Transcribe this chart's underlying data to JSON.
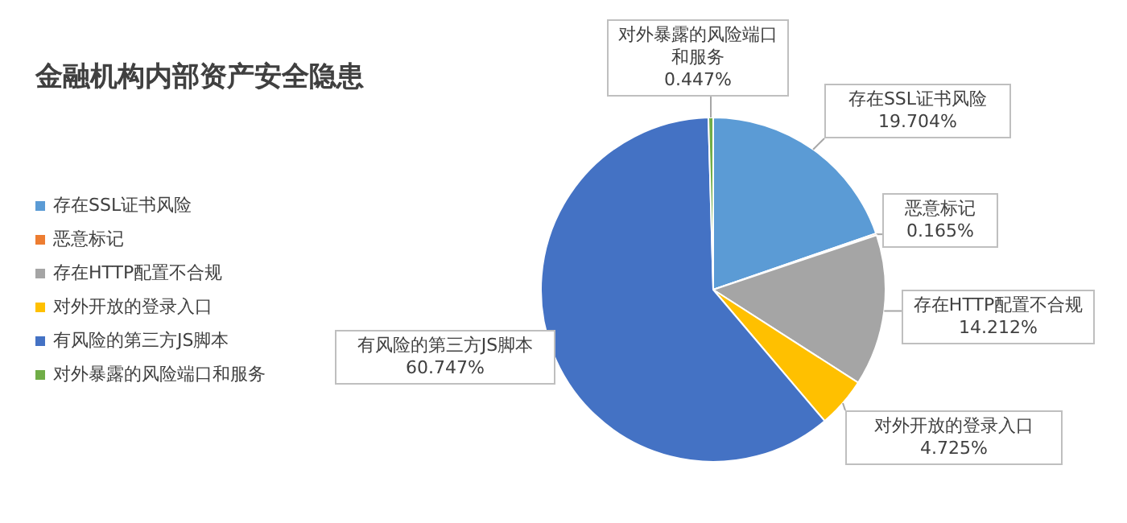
{
  "chart_data": {
    "type": "pie",
    "title": "金融机构内部资产安全隐患",
    "categories": [
      "存在SSL证书风险",
      "恶意标记",
      "存在HTTP配置不合规",
      "对外开放的登录入口",
      "有风险的第三方JS脚本",
      "对外暴露的风险端口和服务"
    ],
    "values": [
      19.704,
      0.165,
      14.212,
      4.725,
      60.747,
      0.447
    ],
    "value_labels": [
      "19.704%",
      "0.165%",
      "14.212%",
      "4.725%",
      "60.747%",
      "0.447%"
    ],
    "colors": [
      "#5b9bd5",
      "#ed7d31",
      "#a5a5a5",
      "#ffc000",
      "#4472c4",
      "#70ad47"
    ],
    "legend": "left"
  }
}
